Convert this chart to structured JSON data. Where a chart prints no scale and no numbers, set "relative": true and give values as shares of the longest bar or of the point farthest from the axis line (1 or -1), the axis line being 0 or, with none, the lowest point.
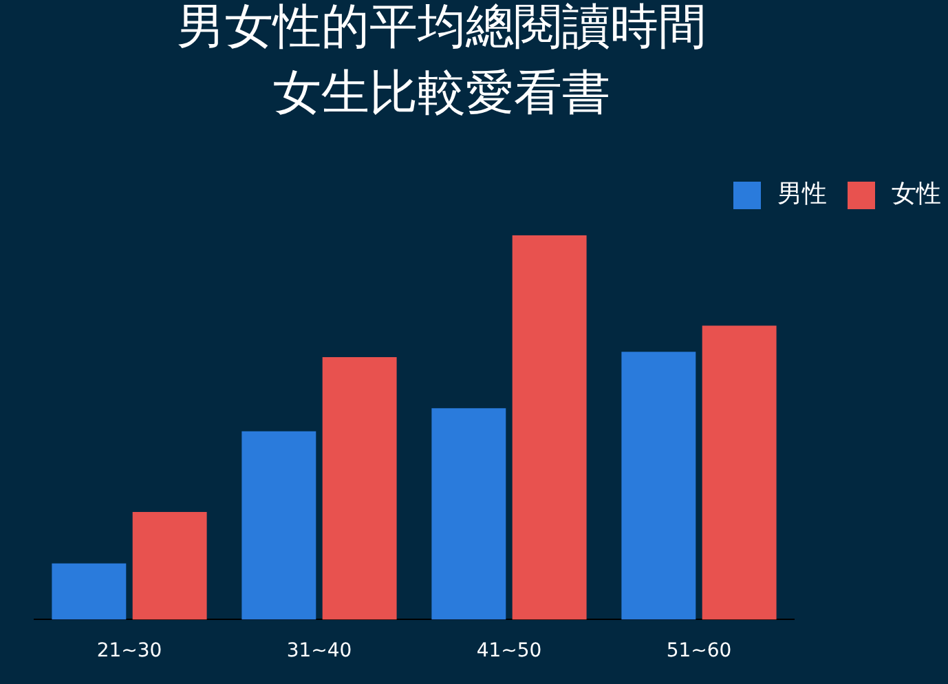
{
  "chart_data": {
    "type": "bar",
    "title": "男女性的平均總閱讀時間",
    "subtitle": "女生比較愛看書",
    "categories": [
      "21~30",
      "31~40",
      "41~50",
      "51~60"
    ],
    "relative": true,
    "series": [
      {
        "name": "男性",
        "color": "#2a7bdc",
        "values": [
          0.146,
          0.49,
          0.55,
          0.697
        ]
      },
      {
        "name": "女性",
        "color": "#e8524f",
        "values": [
          0.28,
          0.683,
          1,
          0.765
        ]
      }
    ],
    "legend": "top right"
  }
}
